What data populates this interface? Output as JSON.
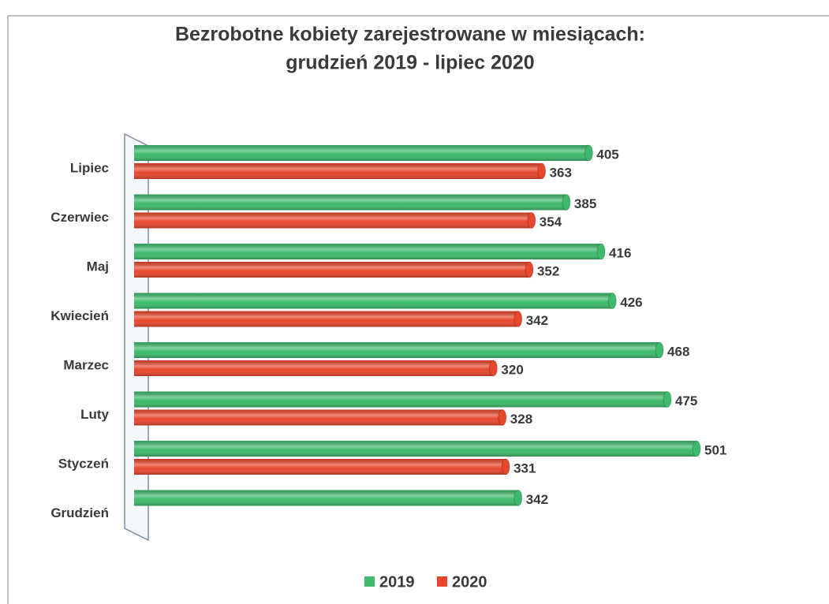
{
  "chart_data": {
    "type": "bar",
    "orientation": "horizontal",
    "title": [
      "Bezrobotne kobiety zarejestrowane w miesiącach:",
      "grudzień 2019 - lipiec 2020"
    ],
    "categories": [
      "Lipiec",
      "Czerwiec",
      "Maj",
      "Kwiecień",
      "Marzec",
      "Luty",
      "Styczeń",
      "Grudzień"
    ],
    "series": [
      {
        "name": "2019",
        "color": "#3dba6c",
        "values": [
          405,
          385,
          416,
          426,
          468,
          475,
          501,
          342
        ]
      },
      {
        "name": "2020",
        "color": "#e8472d",
        "values": [
          363,
          354,
          352,
          342,
          320,
          328,
          331,
          null
        ]
      }
    ],
    "legend": "bottom"
  }
}
